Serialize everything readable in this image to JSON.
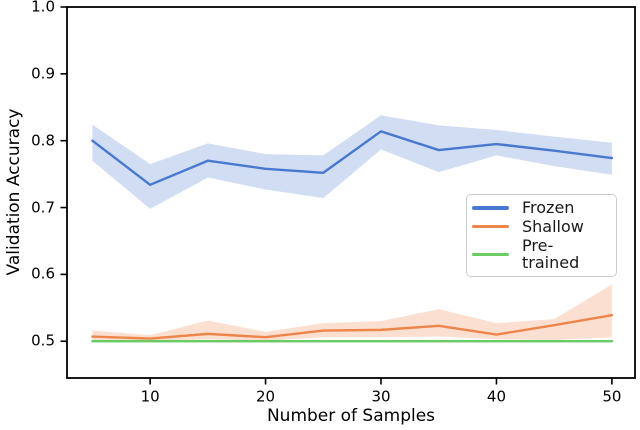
{
  "chart_data": {
    "type": "line",
    "title": "",
    "xlabel": "Number of Samples",
    "ylabel": "Validation Accuracy",
    "x": [
      5,
      10,
      15,
      20,
      25,
      30,
      35,
      40,
      45,
      50
    ],
    "xlim": [
      2.8,
      52.0
    ],
    "ylim": [
      0.445,
      1.0
    ],
    "xticks": [
      10,
      20,
      30,
      40,
      50
    ],
    "xticklabels": [
      "10",
      "20",
      "30",
      "40",
      "50"
    ],
    "yticks": [
      0.5,
      0.6,
      0.7,
      0.8,
      0.9,
      1.0
    ],
    "yticklabels": [
      "0.5",
      "0.6",
      "0.7",
      "0.8",
      "0.9",
      "1.0"
    ],
    "grid": false,
    "band_opacity": 0.25,
    "spine_color": "#000000",
    "text_color": "#000000",
    "legend": {
      "position": "center-right",
      "border_color": "#cccccc",
      "entries": [
        "Frozen",
        "Shallow",
        "Pre-trained"
      ]
    },
    "series": [
      {
        "name": "Frozen",
        "color": "#4878d0",
        "values": [
          0.8,
          0.734,
          0.77,
          0.758,
          0.752,
          0.814,
          0.786,
          0.795,
          0.785,
          0.774
        ],
        "band_lower": [
          0.77,
          0.698,
          0.745,
          0.727,
          0.714,
          0.787,
          0.753,
          0.778,
          0.762,
          0.749
        ],
        "band_upper": [
          0.824,
          0.765,
          0.796,
          0.78,
          0.778,
          0.838,
          0.823,
          0.816,
          0.806,
          0.797
        ]
      },
      {
        "name": "Shallow",
        "color": "#ee854a",
        "values": [
          0.507,
          0.504,
          0.511,
          0.506,
          0.516,
          0.517,
          0.523,
          0.51,
          0.524,
          0.539
        ],
        "band_lower": [
          0.5,
          0.5,
          0.503,
          0.501,
          0.506,
          0.506,
          0.507,
          0.503,
          0.502,
          0.506
        ],
        "band_upper": [
          0.516,
          0.509,
          0.531,
          0.514,
          0.527,
          0.53,
          0.548,
          0.527,
          0.533,
          0.585
        ]
      },
      {
        "name": "Pre-trained",
        "color": "#6acc64",
        "values": [
          0.5,
          0.5,
          0.5,
          0.5,
          0.5,
          0.5,
          0.5,
          0.5,
          0.5,
          0.5
        ],
        "band_lower": [
          0.498,
          0.498,
          0.498,
          0.498,
          0.498,
          0.498,
          0.498,
          0.498,
          0.498,
          0.498
        ],
        "band_upper": [
          0.502,
          0.502,
          0.502,
          0.502,
          0.502,
          0.502,
          0.502,
          0.502,
          0.502,
          0.502
        ]
      }
    ]
  }
}
